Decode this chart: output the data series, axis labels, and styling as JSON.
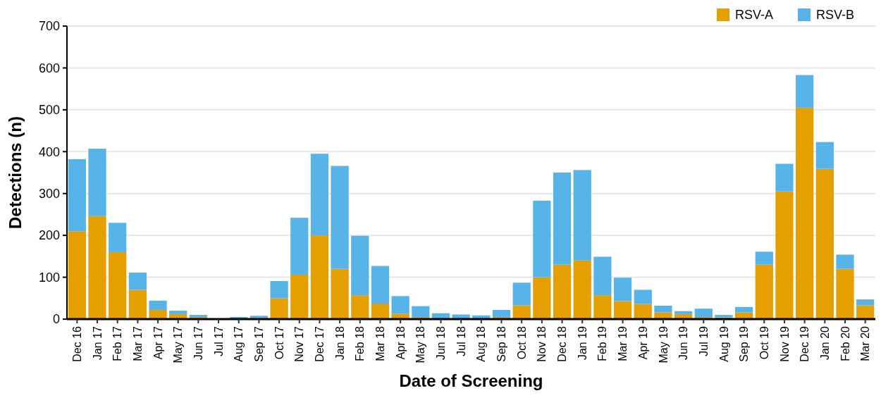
{
  "chart_data": {
    "type": "bar",
    "stacked": true,
    "xlabel": "Date of Screening",
    "ylabel": "Detections (n)",
    "categories": [
      "Dec 16",
      "Jan 17",
      "Feb 17",
      "Mar 17",
      "Apr 17",
      "May 17",
      "Jun 17",
      "Jul 17",
      "Aug 17",
      "Sep 17",
      "Oct 17",
      "Nov 17",
      "Dec 17",
      "Jan 18",
      "Feb 18",
      "Mar 18",
      "Apr 18",
      "May 18",
      "Jun 18",
      "Jul 18",
      "Aug 18",
      "Sep 18",
      "Oct 18",
      "Nov 18",
      "Dec 18",
      "Jan 19",
      "Feb 19",
      "Mar 19",
      "Apr 19",
      "May 19",
      "Jun 19",
      "Jul 19",
      "Aug 19",
      "Sep 19",
      "Oct 19",
      "Nov 19",
      "Dec 19",
      "Jan 20",
      "Feb 20",
      "Mar 20"
    ],
    "series": [
      {
        "name": "RSV-A",
        "color": "#e69f00",
        "values": [
          210,
          246,
          160,
          70,
          22,
          12,
          5,
          0,
          1,
          3,
          50,
          106,
          200,
          120,
          57,
          37,
          13,
          5,
          1,
          1,
          1,
          5,
          33,
          100,
          130,
          140,
          57,
          43,
          36,
          16,
          12,
          5,
          4,
          16,
          130,
          305,
          505,
          359,
          120,
          33
        ]
      },
      {
        "name": "RSV-B",
        "color": "#56b4e9",
        "values": [
          172,
          161,
          70,
          41,
          22,
          8,
          5,
          0,
          4,
          5,
          41,
          136,
          195,
          246,
          142,
          90,
          42,
          26,
          13,
          10,
          8,
          17,
          54,
          183,
          220,
          216,
          92,
          56,
          34,
          16,
          7,
          20,
          6,
          13,
          31,
          66,
          78,
          64,
          34,
          14
        ]
      }
    ],
    "ylim": [
      0,
      700
    ],
    "yticks": [
      0,
      100,
      200,
      300,
      400,
      500,
      600,
      700
    ],
    "grid": "y",
    "legend": "top right"
  }
}
